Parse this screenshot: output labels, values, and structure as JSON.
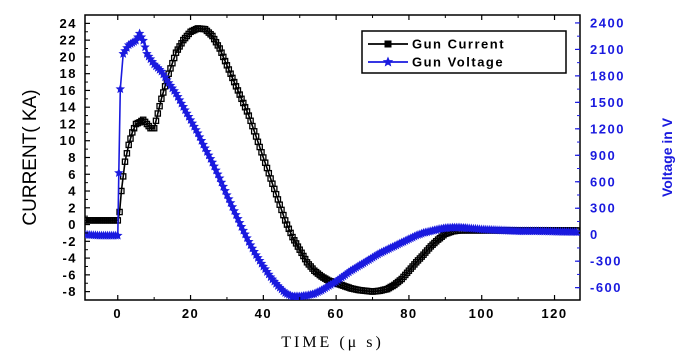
{
  "chart_data": {
    "type": "line",
    "xlabel": "TIME (μ s)",
    "ylabel_left": "CURRENT( KA)",
    "ylabel_right": "Voltage in V",
    "x_ticks": [
      0,
      20,
      40,
      60,
      80,
      100,
      120
    ],
    "x_tick_labels": [
      "0",
      "20",
      "40",
      "60",
      "80",
      "100",
      "120"
    ],
    "xlim": [
      -9,
      127
    ],
    "y_left_ticks": [
      -8,
      -6,
      -4,
      -2,
      0,
      2,
      4,
      6,
      8,
      10,
      12,
      14,
      16,
      18,
      20,
      22,
      24
    ],
    "y_left_tick_labels": [
      "-8",
      "-6",
      "-4",
      "-2",
      "0",
      "2",
      "4",
      "6",
      "8",
      "10",
      "12",
      "14",
      "16",
      "18",
      "20",
      "22",
      "24"
    ],
    "ylim_left": [
      -9,
      25
    ],
    "y_right_ticks": [
      -600,
      -300,
      0,
      300,
      600,
      900,
      1200,
      1500,
      1800,
      2100,
      2400
    ],
    "y_right_tick_labels": [
      "-600",
      "-300",
      "0",
      "300",
      "600",
      "900",
      "1200",
      "1500",
      "1800",
      "2100",
      "2400"
    ],
    "ylim_right": [
      -740,
      2490
    ],
    "legend_position": "top-right",
    "series": [
      {
        "name": "Gun Current",
        "axis": "left",
        "color": "#000000",
        "marker": "square-open",
        "x": [
          -9,
          -5,
          0,
          0.5,
          1,
          2,
          3,
          4,
          5,
          6,
          7,
          8,
          9,
          10,
          12,
          14,
          16,
          18,
          20,
          22,
          24,
          26,
          28,
          30,
          32,
          34,
          36,
          38,
          40,
          42,
          44,
          46,
          48,
          50,
          52,
          54,
          56,
          58,
          60,
          62,
          64,
          66,
          68,
          70,
          72,
          74,
          76,
          78,
          80,
          82,
          84,
          86,
          88,
          90,
          92,
          94,
          96,
          100,
          105,
          110,
          115,
          120,
          126
        ],
        "y": [
          0.5,
          0.5,
          0.5,
          1.5,
          4,
          7.5,
          9.5,
          11,
          12,
          12.2,
          12.5,
          12,
          11.5,
          11.5,
          15,
          18,
          20.5,
          22,
          23,
          23.4,
          23.3,
          22.5,
          21,
          19,
          17,
          15,
          13,
          10.5,
          8,
          5.5,
          3,
          0.5,
          -1.5,
          -3,
          -4.5,
          -5.5,
          -6.2,
          -6.7,
          -7,
          -7.3,
          -7.6,
          -7.8,
          -7.9,
          -8,
          -7.9,
          -7.7,
          -7.2,
          -6.5,
          -5.5,
          -4.5,
          -3.6,
          -2.6,
          -1.8,
          -1.1,
          -0.8,
          -0.7,
          -0.7,
          -0.7,
          -0.7,
          -0.7,
          -0.7,
          -0.7,
          -0.7
        ]
      },
      {
        "name": "Gun Voltage",
        "axis": "right",
        "color": "#1a1adf",
        "marker": "star",
        "x": [
          -9,
          -5,
          0,
          0.3,
          0.7,
          1.5,
          3,
          5,
          6,
          7,
          8,
          10,
          12,
          14,
          16,
          18,
          20,
          22,
          24,
          26,
          28,
          30,
          32,
          34,
          36,
          38,
          40,
          42,
          44,
          46,
          48,
          50,
          52,
          54,
          56,
          58,
          60,
          62,
          64,
          66,
          68,
          70,
          72,
          74,
          76,
          78,
          80,
          82,
          84,
          86,
          88,
          90,
          92,
          94,
          96,
          100,
          105,
          110,
          115,
          120,
          126
        ],
        "y": [
          0,
          -10,
          -10,
          700,
          1650,
          2050,
          2150,
          2200,
          2280,
          2200,
          2050,
          1930,
          1850,
          1720,
          1600,
          1450,
          1300,
          1150,
          980,
          820,
          640,
          450,
          270,
          90,
          -80,
          -230,
          -360,
          -480,
          -580,
          -660,
          -700,
          -700,
          -690,
          -670,
          -630,
          -580,
          -530,
          -470,
          -410,
          -360,
          -310,
          -260,
          -210,
          -170,
          -130,
          -90,
          -50,
          -10,
          20,
          40,
          60,
          75,
          80,
          80,
          75,
          60,
          50,
          40,
          40,
          35,
          30
        ]
      }
    ]
  }
}
